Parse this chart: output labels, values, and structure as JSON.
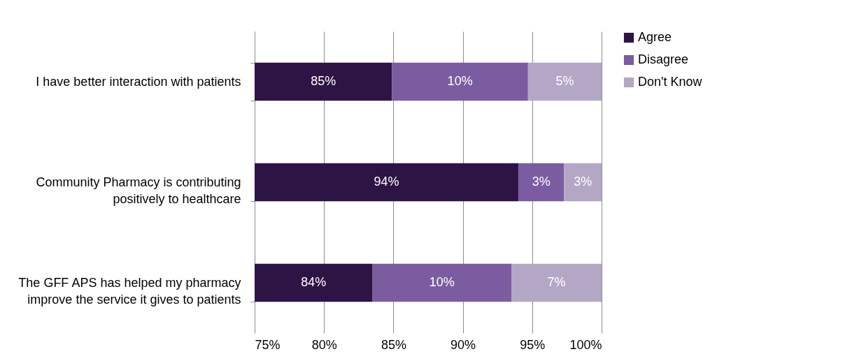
{
  "chart_data": {
    "type": "bar",
    "orientation": "horizontal",
    "categories": [
      "I have better interaction with patients",
      "Community Pharmacy is contributing positively to healthcare",
      "The GFF APS has helped my pharmacy improve the service it gives to patients"
    ],
    "series": [
      {
        "name": "Agree",
        "color": "#2e1444",
        "base": [
          0,
          0,
          0
        ],
        "values": [
          84.9,
          94.0,
          83.5
        ],
        "value_labels": [
          "85%",
          "94%",
          "84%"
        ]
      },
      {
        "name": "Disagree",
        "color": "#7b5ca0",
        "base": [
          84.9,
          94.0,
          83.5
        ],
        "values": [
          9.8,
          3.3,
          10.0
        ],
        "value_labels": [
          "10%",
          "3%",
          "10%"
        ]
      },
      {
        "name": "Don't Know",
        "color": "#b4a7c6",
        "base": [
          94.7,
          97.3,
          93.5
        ],
        "values": [
          5.3,
          2.7,
          6.5
        ],
        "value_labels": [
          "5%",
          "3%",
          "7%"
        ]
      }
    ],
    "xlim": [
      75,
      100
    ],
    "xticks": [
      {
        "value": 75,
        "label": "75%"
      },
      {
        "value": 80,
        "label": "80%"
      },
      {
        "value": 85,
        "label": "85%"
      },
      {
        "value": 90,
        "label": "90%"
      },
      {
        "value": 95,
        "label": "95%"
      },
      {
        "value": 100,
        "label": "100%"
      }
    ],
    "grid": "x",
    "legend": "right"
  }
}
